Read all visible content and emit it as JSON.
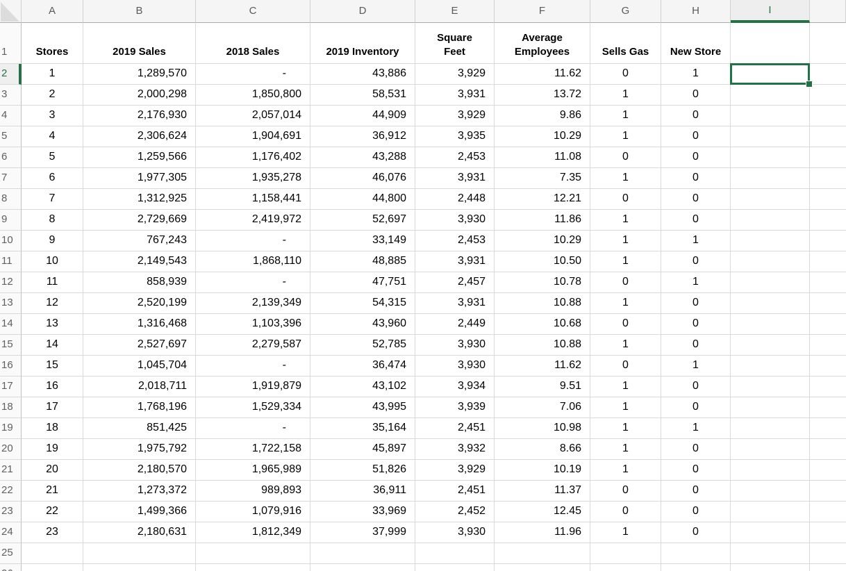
{
  "sheet": {
    "column_letters": [
      "A",
      "B",
      "C",
      "D",
      "E",
      "F",
      "G",
      "H",
      "I"
    ],
    "selected_column": "I",
    "selected_row": 2,
    "selection": {
      "cell": "I2",
      "accent_color": "#217346"
    },
    "rows": [
      {
        "row": 1,
        "is_header": true,
        "cells": [
          "Stores",
          "2019 Sales",
          "2018 Sales",
          "2019 Inventory",
          "Square\nFeet",
          "Average\nEmployees",
          "Sells Gas",
          "New Store"
        ]
      },
      {
        "row": 2,
        "cells": [
          "1",
          "1,289,570",
          "-",
          "43,886",
          "3,929",
          "11.62",
          "0",
          "1"
        ]
      },
      {
        "row": 3,
        "cells": [
          "2",
          "2,000,298",
          "1,850,800",
          "58,531",
          "3,931",
          "13.72",
          "1",
          "0"
        ]
      },
      {
        "row": 4,
        "cells": [
          "3",
          "2,176,930",
          "2,057,014",
          "44,909",
          "3,929",
          "9.86",
          "1",
          "0"
        ]
      },
      {
        "row": 5,
        "cells": [
          "4",
          "2,306,624",
          "1,904,691",
          "36,912",
          "3,935",
          "10.29",
          "1",
          "0"
        ]
      },
      {
        "row": 6,
        "cells": [
          "5",
          "1,259,566",
          "1,176,402",
          "43,288",
          "2,453",
          "11.08",
          "0",
          "0"
        ]
      },
      {
        "row": 7,
        "cells": [
          "6",
          "1,977,305",
          "1,935,278",
          "46,076",
          "3,931",
          "7.35",
          "1",
          "0"
        ]
      },
      {
        "row": 8,
        "cells": [
          "7",
          "1,312,925",
          "1,158,441",
          "44,800",
          "2,448",
          "12.21",
          "0",
          "0"
        ]
      },
      {
        "row": 9,
        "cells": [
          "8",
          "2,729,669",
          "2,419,972",
          "52,697",
          "3,930",
          "11.86",
          "1",
          "0"
        ]
      },
      {
        "row": 10,
        "cells": [
          "9",
          "767,243",
          "-",
          "33,149",
          "2,453",
          "10.29",
          "1",
          "1"
        ]
      },
      {
        "row": 11,
        "cells": [
          "10",
          "2,149,543",
          "1,868,110",
          "48,885",
          "3,931",
          "10.50",
          "1",
          "0"
        ]
      },
      {
        "row": 12,
        "cells": [
          "11",
          "858,939",
          "-",
          "47,751",
          "2,457",
          "10.78",
          "0",
          "1"
        ]
      },
      {
        "row": 13,
        "cells": [
          "12",
          "2,520,199",
          "2,139,349",
          "54,315",
          "3,931",
          "10.88",
          "1",
          "0"
        ]
      },
      {
        "row": 14,
        "cells": [
          "13",
          "1,316,468",
          "1,103,396",
          "43,960",
          "2,449",
          "10.68",
          "0",
          "0"
        ]
      },
      {
        "row": 15,
        "cells": [
          "14",
          "2,527,697",
          "2,279,587",
          "52,785",
          "3,930",
          "10.88",
          "1",
          "0"
        ]
      },
      {
        "row": 16,
        "cells": [
          "15",
          "1,045,704",
          "-",
          "36,474",
          "3,930",
          "11.62",
          "0",
          "1"
        ]
      },
      {
        "row": 17,
        "cells": [
          "16",
          "2,018,711",
          "1,919,879",
          "43,102",
          "3,934",
          "9.51",
          "1",
          "0"
        ]
      },
      {
        "row": 18,
        "cells": [
          "17",
          "1,768,196",
          "1,529,334",
          "43,995",
          "3,939",
          "7.06",
          "1",
          "0"
        ]
      },
      {
        "row": 19,
        "cells": [
          "18",
          "851,425",
          "-",
          "35,164",
          "2,451",
          "10.98",
          "1",
          "1"
        ]
      },
      {
        "row": 20,
        "cells": [
          "19",
          "1,975,792",
          "1,722,158",
          "45,897",
          "3,932",
          "8.66",
          "1",
          "0"
        ]
      },
      {
        "row": 21,
        "cells": [
          "20",
          "2,180,570",
          "1,965,989",
          "51,826",
          "3,929",
          "10.19",
          "1",
          "0"
        ]
      },
      {
        "row": 22,
        "cells": [
          "21",
          "1,273,372",
          "989,893",
          "36,911",
          "2,451",
          "11.37",
          "0",
          "0"
        ]
      },
      {
        "row": 23,
        "cells": [
          "22",
          "1,499,366",
          "1,079,916",
          "33,969",
          "2,452",
          "12.45",
          "0",
          "0"
        ]
      },
      {
        "row": 24,
        "cells": [
          "23",
          "2,180,631",
          "1,812,349",
          "37,999",
          "3,930",
          "11.96",
          "1",
          "0"
        ]
      },
      {
        "row": 25,
        "cells": [
          "",
          "",
          "",
          "",
          "",
          "",
          "",
          ""
        ]
      },
      {
        "row": 26,
        "cells": [
          "",
          "",
          "",
          "",
          "",
          "",
          "",
          ""
        ]
      }
    ]
  }
}
